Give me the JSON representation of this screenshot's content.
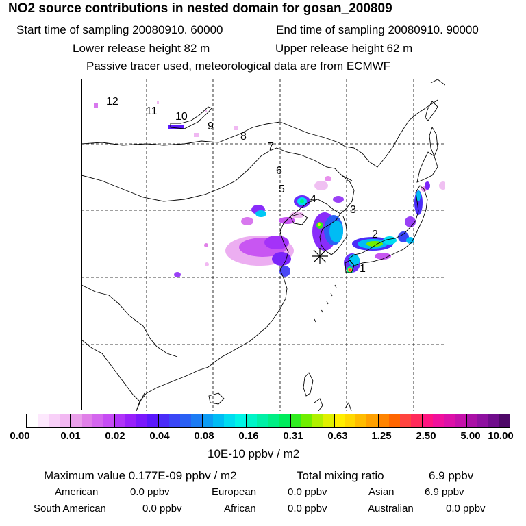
{
  "header": {
    "title": "NO2 source contributions in nested domain for gosan_200809",
    "start_label": "Start time of sampling 20080910. 60000",
    "end_label": "End time of sampling 20080910. 90000",
    "lower_label": "Lower release height   82 m",
    "upper_label": "Upper release height   62 m",
    "tracer_note": "Passive tracer used, meteorological data are from ECMWF"
  },
  "map": {
    "station_marker": "asterisk",
    "trajectory_labels": [
      "1",
      "2",
      "3",
      "4",
      "5",
      "6",
      "7",
      "8",
      "9",
      "10",
      "11",
      "12"
    ]
  },
  "colorbar": {
    "tick_labels": [
      "0.00",
      "0.01",
      "0.02",
      "0.04",
      "0.08",
      "0.16",
      "0.31",
      "0.63",
      "1.25",
      "2.50",
      "5.00",
      "10.00"
    ],
    "units_label": "10E-10 ppbv / m2",
    "colors": [
      "#ffffff",
      "#fde8fd",
      "#f8d0f8",
      "#f2b8f2",
      "#eaa0ea",
      "#e080e8",
      "#d466ee",
      "#c64cf4",
      "#b034f8",
      "#9820fa",
      "#7a18fc",
      "#5a18fc",
      "#4a2cf8",
      "#3a46f6",
      "#2a60f4",
      "#1c7cf4",
      "#0c9cf4",
      "#00bcf4",
      "#00dcf0",
      "#00f4e6",
      "#00f4c8",
      "#00f0a6",
      "#00ee84",
      "#00ec5c",
      "#30ec20",
      "#70ee00",
      "#b0f000",
      "#e0f000",
      "#ffee00",
      "#ffd800",
      "#ffbc00",
      "#ffa000",
      "#ff8400",
      "#ff6600",
      "#ff4440",
      "#ff2a5a",
      "#ff1480",
      "#f0109c",
      "#dc10a8",
      "#c410aa",
      "#aa10a6",
      "#8e10a0",
      "#700c8c",
      "#4e0868"
    ]
  },
  "footer": {
    "max_value": "Maximum value  0.177E-09 ppbv / m2",
    "total_label": "Total mixing ratio",
    "total_value": "6.9 ppbv",
    "regions": [
      {
        "name": "American",
        "value": "0.0 ppbv"
      },
      {
        "name": "European",
        "value": "0.0 ppbv"
      },
      {
        "name": "Asian",
        "value": "6.9 ppbv"
      },
      {
        "name": "South American",
        "value": "0.0 ppbv"
      },
      {
        "name": "African",
        "value": "0.0 ppbv"
      },
      {
        "name": "Australian",
        "value": "0.0 ppbv"
      }
    ]
  }
}
